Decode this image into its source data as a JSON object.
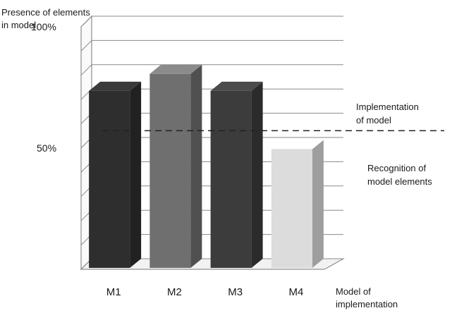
{
  "chart_data": {
    "type": "bar",
    "style": "3d",
    "title": "",
    "ylabel_lines": [
      "Presence of elements",
      "in model"
    ],
    "xlabel_lines": [
      "Model of",
      "implementation"
    ],
    "categories": [
      "M1",
      "M2",
      "M3",
      "M4"
    ],
    "values": [
      73,
      80,
      73,
      49
    ],
    "ylim": [
      0,
      100
    ],
    "yticks": [
      {
        "value": 100,
        "label": "100%"
      },
      {
        "value": 50,
        "label": "50%"
      }
    ],
    "grid": true,
    "bar_colors": [
      "#2e2e2e",
      "#6f6f6f",
      "#3c3c3c",
      "#dcdcdc"
    ],
    "reference_line": {
      "value": 56,
      "style": "dashed"
    },
    "annotations": [
      {
        "lines": [
          "Implementation",
          "of model"
        ],
        "position": "above-reference-line"
      },
      {
        "lines": [
          "Recognition of",
          "model elements"
        ],
        "position": "below-reference-line"
      }
    ]
  }
}
